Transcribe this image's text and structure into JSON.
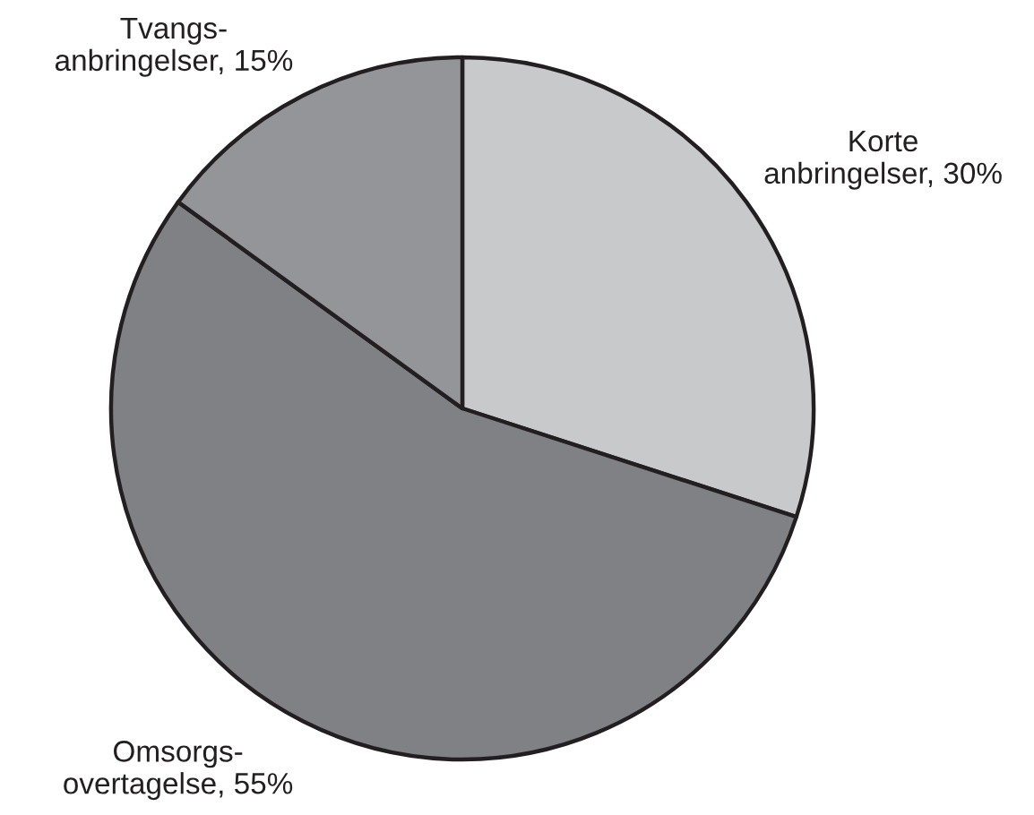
{
  "chart_data": {
    "type": "pie",
    "categories": [
      "Korte\nanbringelser",
      "Omsorgs-\novertagelse",
      "Tvangs-\nanbringelser"
    ],
    "values": [
      30,
      55,
      15
    ],
    "value_labels": [
      "30%",
      "55%",
      "15%"
    ],
    "colors": [
      "#c8c9cb",
      "#808184",
      "#939598"
    ]
  }
}
